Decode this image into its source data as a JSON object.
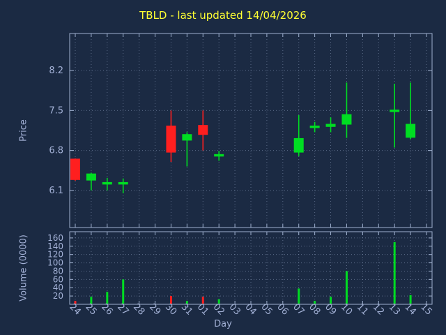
{
  "title": "TBLD - last updated 14/04/2026",
  "colors": {
    "background": "#1b2a43",
    "title": "#ffff33",
    "axis_text": "#a3b1d6",
    "border": "#9fb0cf",
    "grid": "#8fa0bf",
    "up": "#00dd22",
    "down": "#ff1f1f"
  },
  "chart_data": [
    {
      "type": "candlestick",
      "title": "TBLD - last updated 14/04/2026",
      "xlabel": "Day",
      "ylabel": "Price",
      "ylim": [
        5.45,
        8.85
      ],
      "yticks": [
        6.1,
        6.8,
        7.5,
        8.2
      ],
      "grid": "dotted",
      "categories": [
        "24",
        "25",
        "26",
        "27",
        "28",
        "29",
        "30",
        "31",
        "01",
        "02",
        "03",
        "04",
        "05",
        "06",
        "07",
        "08",
        "09",
        "10",
        "11",
        "12",
        "13",
        "14",
        "15"
      ],
      "candles": [
        {
          "day": "24",
          "open": 6.65,
          "high": 6.66,
          "low": 6.27,
          "close": 6.29
        },
        {
          "day": "25",
          "open": 6.28,
          "high": 6.41,
          "low": 6.1,
          "close": 6.39
        },
        {
          "day": "26",
          "open": 6.21,
          "high": 6.32,
          "low": 6.1,
          "close": 6.24
        },
        {
          "day": "27",
          "open": 6.21,
          "high": 6.31,
          "low": 6.05,
          "close": 6.24
        },
        {
          "day": "30",
          "open": 7.23,
          "high": 7.5,
          "low": 6.6,
          "close": 6.77
        },
        {
          "day": "31",
          "open": 6.98,
          "high": 7.12,
          "low": 6.52,
          "close": 7.08
        },
        {
          "day": "01",
          "open": 7.24,
          "high": 7.5,
          "low": 6.8,
          "close": 7.08
        },
        {
          "day": "02",
          "open": 6.7,
          "high": 6.79,
          "low": 6.62,
          "close": 6.73
        },
        {
          "day": "07",
          "open": 6.77,
          "high": 7.42,
          "low": 6.7,
          "close": 7.01
        },
        {
          "day": "08",
          "open": 7.2,
          "high": 7.3,
          "low": 7.12,
          "close": 7.23
        },
        {
          "day": "09",
          "open": 7.22,
          "high": 7.38,
          "low": 7.12,
          "close": 7.26
        },
        {
          "day": "10",
          "open": 7.26,
          "high": 7.99,
          "low": 7.02,
          "close": 7.43
        },
        {
          "day": "13",
          "open": 7.49,
          "high": 7.97,
          "low": 6.85,
          "close": 7.51
        },
        {
          "day": "14",
          "open": 7.03,
          "high": 7.99,
          "low": 7.0,
          "close": 7.26
        }
      ]
    },
    {
      "type": "bar",
      "xlabel": "Day",
      "ylabel": "Volume (0000)",
      "ylim": [
        0,
        175
      ],
      "yticks": [
        20,
        40,
        60,
        80,
        100,
        120,
        140,
        160
      ],
      "grid": "dotted",
      "categories": [
        "24",
        "25",
        "26",
        "27",
        "28",
        "29",
        "30",
        "31",
        "01",
        "02",
        "03",
        "04",
        "05",
        "06",
        "07",
        "08",
        "09",
        "10",
        "11",
        "12",
        "13",
        "14",
        "15"
      ],
      "values": [
        8,
        18,
        30,
        60,
        0,
        0,
        20,
        8,
        18,
        12,
        0,
        0,
        0,
        0,
        38,
        8,
        18,
        80,
        0,
        0,
        150,
        22,
        0
      ]
    }
  ]
}
